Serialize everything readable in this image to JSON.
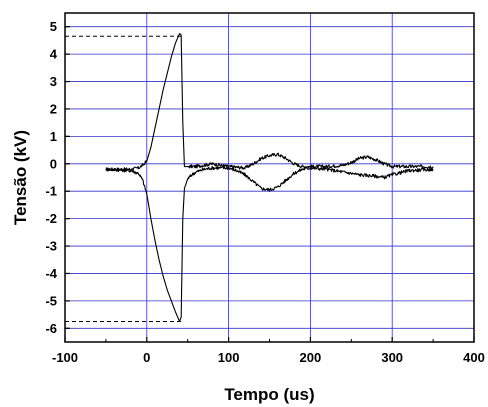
{
  "chart_data": {
    "type": "line",
    "title": "",
    "xlabel": "Tempo (us)",
    "ylabel": "Tensão (kV)",
    "xlim": [
      -100,
      400
    ],
    "ylim": [
      -6.5,
      5.5
    ],
    "x_ticks": [
      -100,
      0,
      100,
      200,
      300,
      400
    ],
    "x_tick_labels": [
      "-100",
      "0",
      "100",
      "200",
      "300",
      "400"
    ],
    "y_ticks": [
      -6,
      -5,
      -4,
      -3,
      -2,
      -1,
      0,
      1,
      2,
      3,
      4,
      5
    ],
    "y_tick_labels": [
      "-6",
      "-5",
      "-4",
      "-3",
      "-2",
      "-1",
      "0",
      "1",
      "2",
      "3",
      "4",
      "5"
    ],
    "grid": true,
    "colors": {
      "grid": "#3333cc",
      "series": "#000000",
      "axes": "#000000"
    },
    "series": [
      {
        "x": [
          -50,
          -30,
          -20,
          -10,
          -5,
          0,
          5,
          10,
          15,
          20,
          25,
          30,
          35,
          40,
          42,
          44,
          46,
          50,
          60,
          80,
          100,
          120,
          130,
          140,
          150,
          160,
          170,
          180,
          190,
          200,
          220,
          240,
          250,
          260,
          270,
          280,
          290,
          300,
          320,
          350
        ],
        "y": [
          -0.2,
          -0.2,
          -0.2,
          -0.15,
          -0.05,
          0.1,
          0.6,
          1.3,
          2.0,
          2.7,
          3.3,
          3.9,
          4.4,
          4.75,
          4.7,
          1.5,
          -0.1,
          -0.1,
          -0.1,
          0.0,
          -0.1,
          -0.15,
          0.0,
          0.2,
          0.3,
          0.35,
          0.2,
          0.0,
          -0.1,
          -0.1,
          -0.1,
          -0.05,
          0.05,
          0.2,
          0.25,
          0.15,
          0.0,
          -0.1,
          -0.1,
          -0.1
        ]
      },
      {
        "x": [
          -50,
          -20,
          -10,
          -5,
          0,
          5,
          10,
          15,
          20,
          25,
          30,
          35,
          40,
          42,
          44,
          46,
          50,
          55,
          60,
          70,
          80,
          100,
          110,
          120,
          130,
          140,
          150,
          160,
          170,
          180,
          190,
          200,
          220,
          240,
          260,
          280,
          290,
          300,
          320,
          350
        ],
        "y": [
          -0.2,
          -0.25,
          -0.35,
          -0.6,
          -1.1,
          -2.0,
          -2.8,
          -3.5,
          -4.1,
          -4.6,
          -5.0,
          -5.4,
          -5.75,
          -5.6,
          -2.0,
          -0.9,
          -0.55,
          -0.4,
          -0.3,
          -0.2,
          -0.15,
          -0.15,
          -0.25,
          -0.4,
          -0.65,
          -0.9,
          -0.95,
          -0.85,
          -0.6,
          -0.35,
          -0.2,
          -0.15,
          -0.2,
          -0.3,
          -0.4,
          -0.45,
          -0.5,
          -0.4,
          -0.25,
          -0.2
        ]
      }
    ],
    "reference_lines": [
      {
        "style": "dashed",
        "y": 4.65,
        "x_from": -100,
        "x_to": 42
      },
      {
        "style": "dashed",
        "y": -5.75,
        "x_from": -100,
        "x_to": 42
      }
    ]
  }
}
